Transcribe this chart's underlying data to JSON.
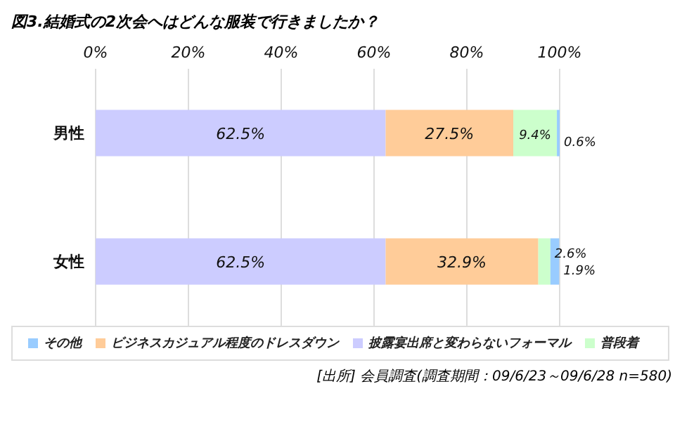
{
  "chart_data": {
    "type": "bar",
    "orientation": "horizontal",
    "stacked": true,
    "title": "図3.結婚式の2次会へはどんな服装で行きましたか？",
    "categories": [
      "男性",
      "女性"
    ],
    "series": [
      {
        "name": "披露宴出席と変わらないフォーマル",
        "color": "#ccccff",
        "values": [
          62.5,
          62.5
        ],
        "value_labels": [
          "62.5%",
          "62.5%"
        ]
      },
      {
        "name": "ビジネスカジュアル程度のドレスダウン",
        "color": "#ffcc99",
        "values": [
          27.5,
          32.9
        ],
        "value_labels": [
          "27.5%",
          "32.9%"
        ]
      },
      {
        "name": "普段着",
        "color": "#ccffcc",
        "values": [
          9.4,
          2.6
        ],
        "value_labels": [
          "9.4%",
          "2.6%"
        ]
      },
      {
        "name": "その他",
        "color": "#99ccff",
        "values": [
          0.6,
          1.9
        ],
        "value_labels": [
          "0.6%",
          "1.9%"
        ]
      }
    ],
    "xlim": [
      0,
      100
    ],
    "xticks": [
      {
        "value": 0,
        "label": "0%"
      },
      {
        "value": 20,
        "label": "20%"
      },
      {
        "value": 40,
        "label": "40%"
      },
      {
        "value": 60,
        "label": "60%"
      },
      {
        "value": 80,
        "label": "80%"
      },
      {
        "value": 100,
        "label": "100%"
      }
    ],
    "grid": "x",
    "legend": "bottom",
    "annotations": [
      "[出所] 会員調査(調査期間：09/6/23～09/6/28 n=580)"
    ]
  }
}
